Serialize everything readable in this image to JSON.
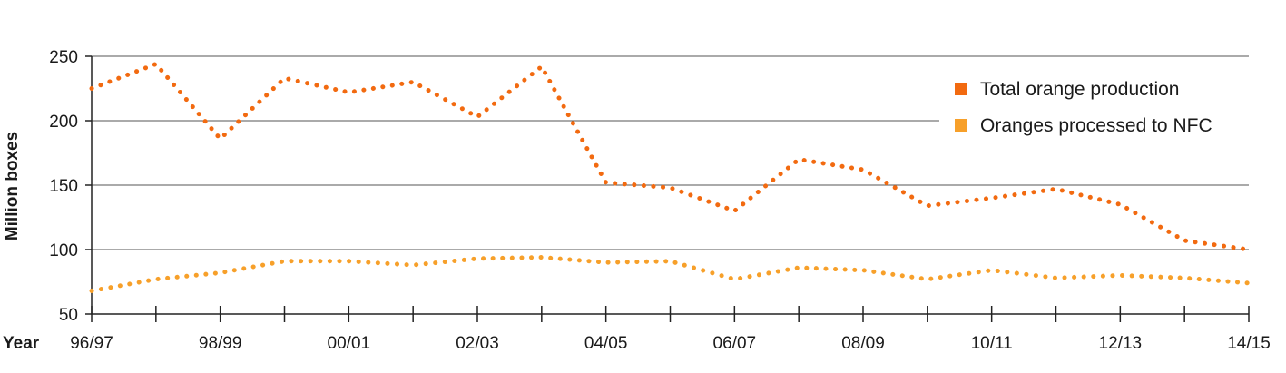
{
  "chart_data": {
    "type": "line",
    "title": "",
    "xlabel": "Year",
    "ylabel": "Million boxes",
    "ylim": [
      50,
      250
    ],
    "yticks": [
      50,
      100,
      150,
      200,
      250
    ],
    "grid": true,
    "legend_position": "top-right",
    "x": [
      "96/97",
      "97/98",
      "98/99",
      "99/00",
      "00/01",
      "01/02",
      "02/03",
      "03/04",
      "04/05",
      "05/06",
      "06/07",
      "07/08",
      "08/09",
      "09/10",
      "10/11",
      "11/12",
      "12/13",
      "13/14",
      "14/15"
    ],
    "xticklabels": [
      "96/97",
      "",
      "98/99",
      "",
      "00/01",
      "",
      "02/03",
      "",
      "04/05",
      "",
      "06/07",
      "",
      "08/09",
      "",
      "10/11",
      "",
      "12/13",
      "",
      "14/15"
    ],
    "series": [
      {
        "name": "Total orange production",
        "color": "#f26a10",
        "values": [
          225,
          244,
          186,
          233,
          222,
          230,
          203,
          242,
          152,
          148,
          130,
          170,
          162,
          134,
          140,
          147,
          135,
          107,
          100
        ]
      },
      {
        "name": "Oranges processed to NFC",
        "color": "#f7a02a",
        "values": [
          68,
          77,
          82,
          91,
          91,
          88,
          93,
          94,
          90,
          91,
          77,
          86,
          84,
          77,
          84,
          78,
          80,
          78,
          74
        ]
      }
    ]
  }
}
